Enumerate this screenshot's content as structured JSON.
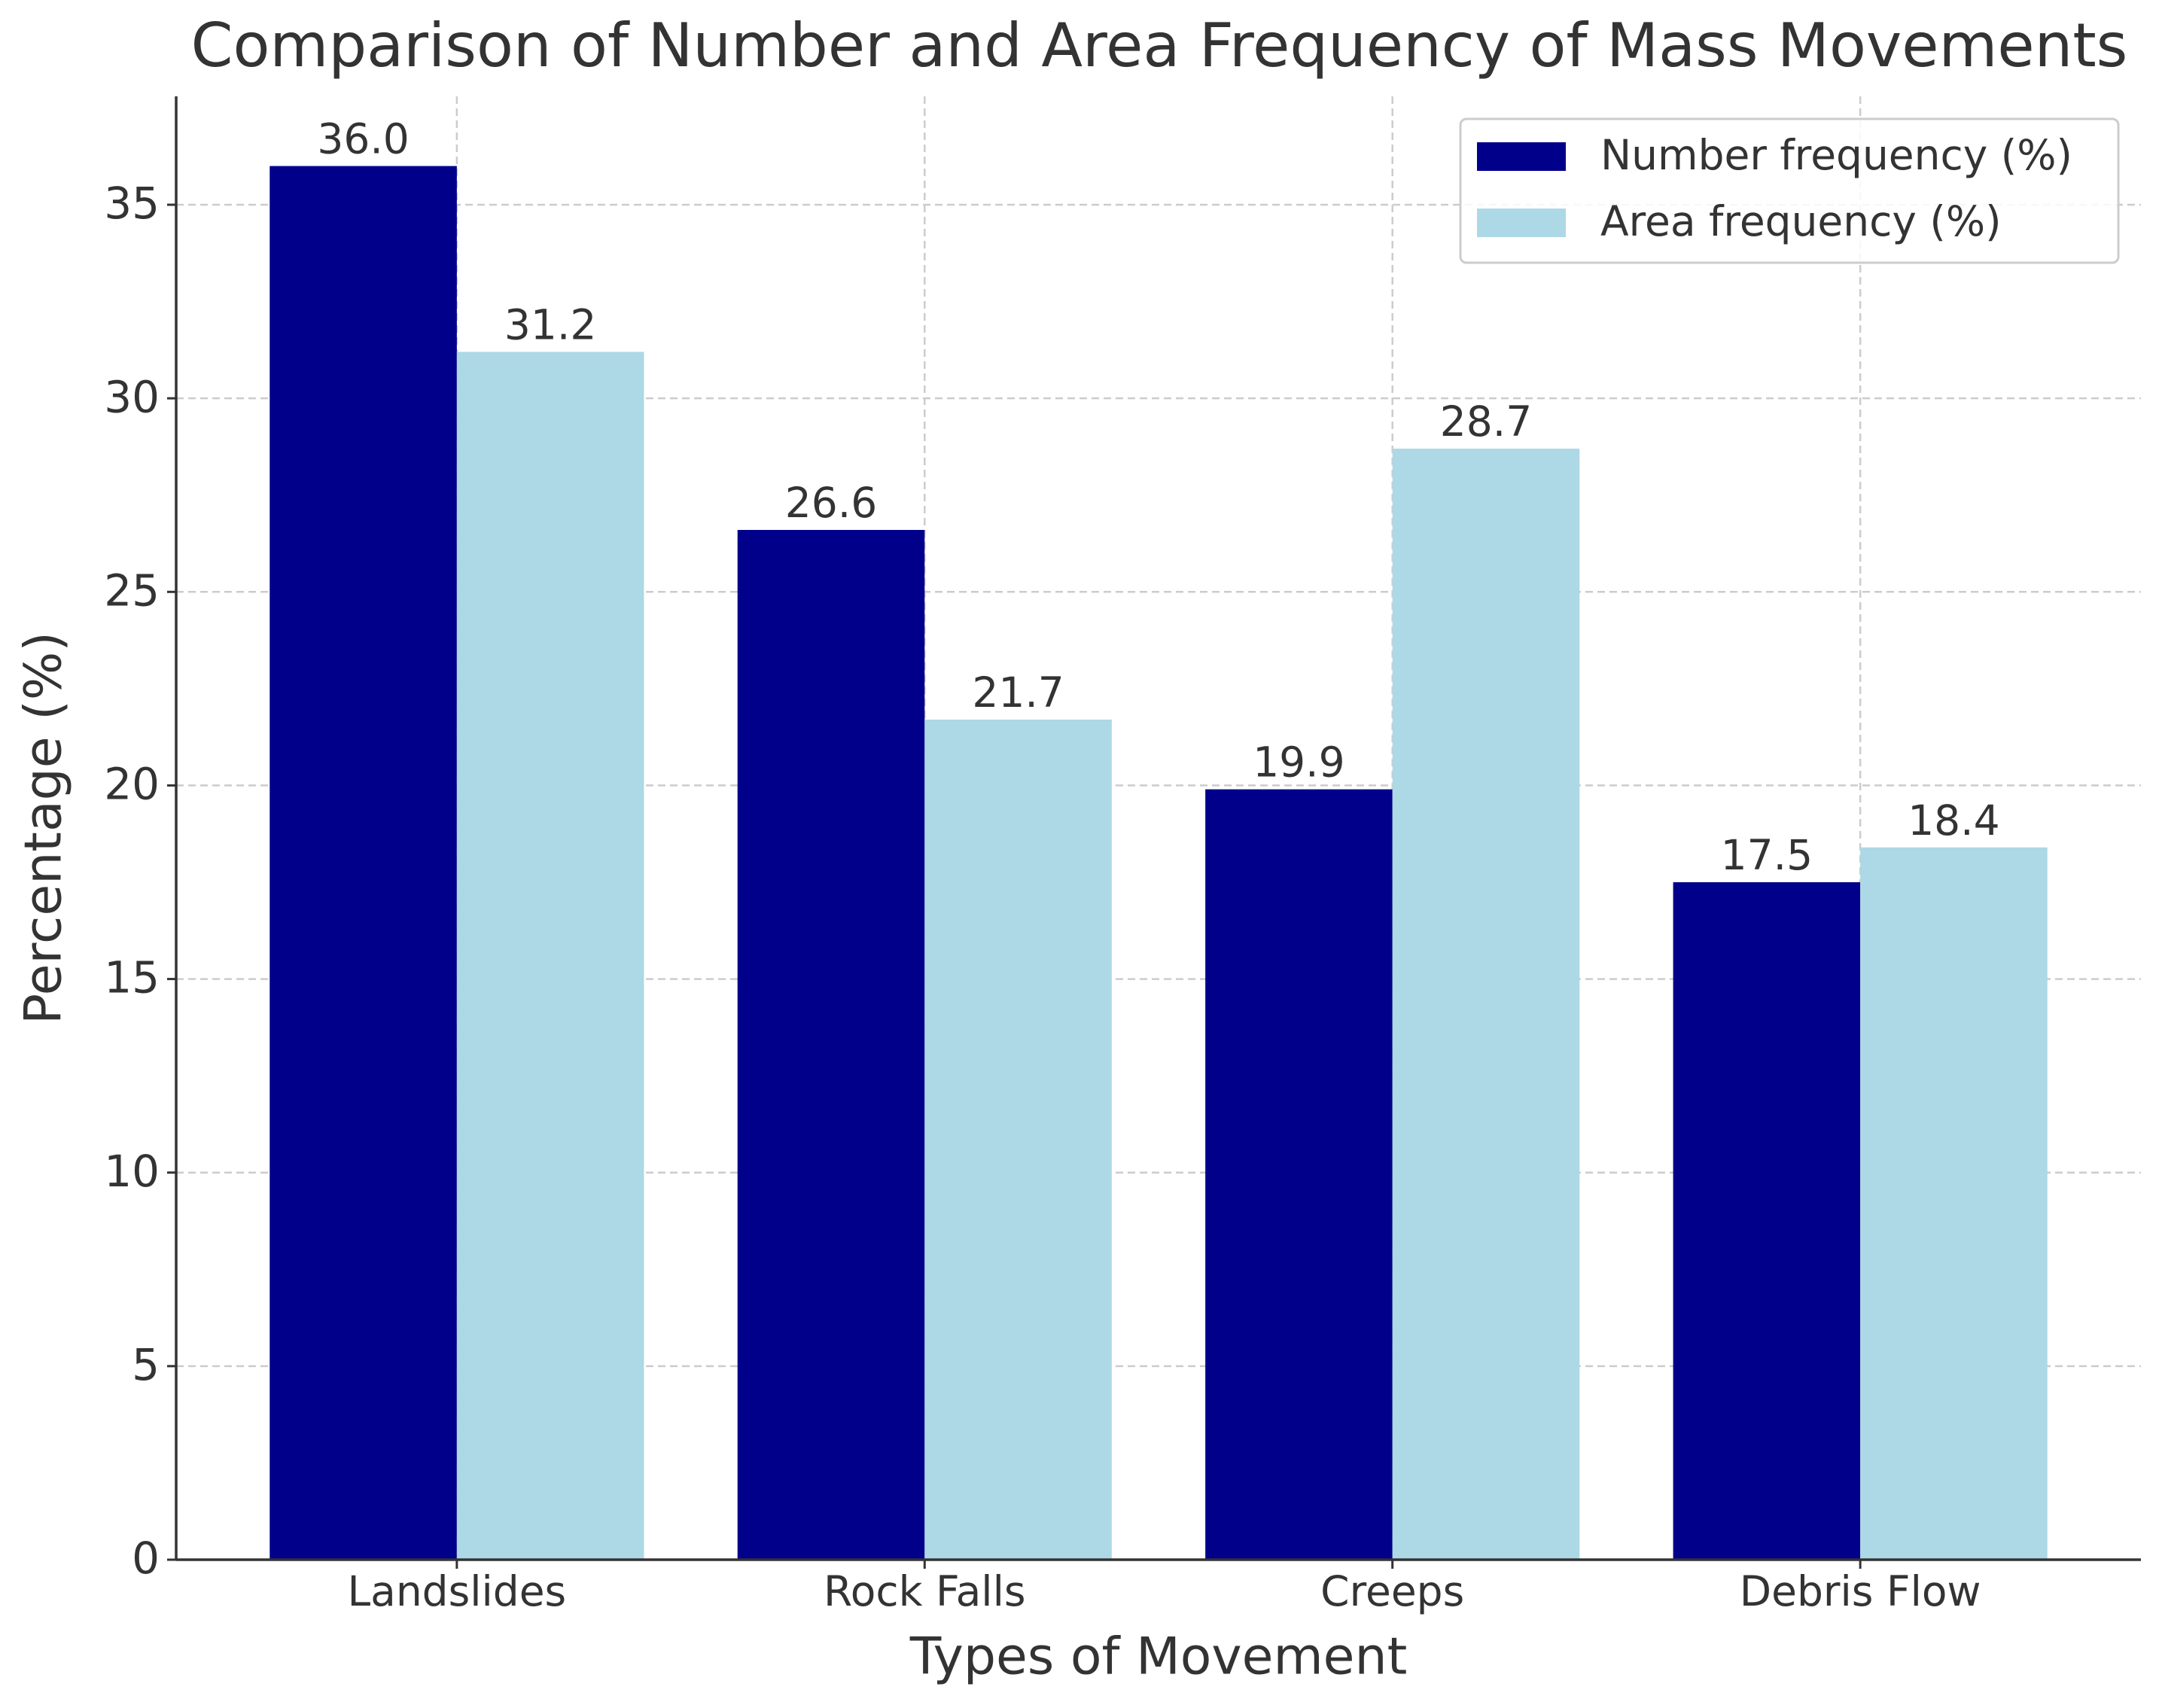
{
  "chart_data": {
    "type": "bar",
    "title": "Comparison of Number and Area Frequency of Mass Movements",
    "x_label": "Types of Movement",
    "y_label": "Percentage (%)",
    "categories": [
      "Landslides",
      "Rock Falls",
      "Creeps",
      "Debris Flow"
    ],
    "series": [
      {
        "name": "Number frequency (%)",
        "color": "#00008b",
        "values": [
          36.0,
          26.6,
          19.9,
          17.5
        ],
        "value_labels": [
          "36.0",
          "26.6",
          "19.9",
          "17.5"
        ]
      },
      {
        "name": "Area frequency (%)",
        "color": "#add8e6",
        "values": [
          31.2,
          21.7,
          28.7,
          18.4
        ],
        "value_labels": [
          "31.2",
          "21.7",
          "28.7",
          "18.4"
        ]
      }
    ],
    "ylim": [
      0,
      37.8
    ],
    "yticks": [
      0,
      5,
      10,
      15,
      20,
      25,
      30,
      35
    ],
    "grid": true,
    "legend": "upper right"
  }
}
